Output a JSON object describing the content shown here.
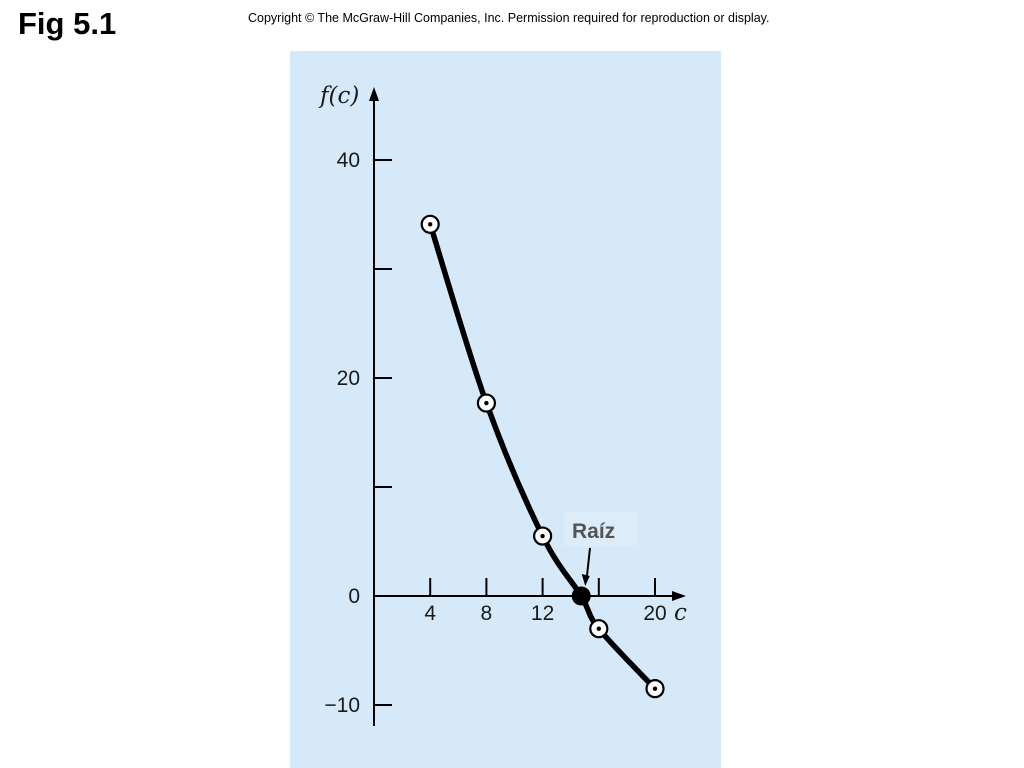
{
  "slide": {
    "title": "Fig 5.1",
    "copyright": "Copyright © The McGraw-Hill Companies, Inc. Permission required for reproduction or display."
  },
  "colors": {
    "panel_background": "#d6e9f8",
    "ink": "#000000",
    "callout_text": "#555555",
    "callout_background": "#dcedf9"
  },
  "chart_data": {
    "type": "line",
    "xlabel": "c",
    "ylabel": "f(c)",
    "xlim": [
      0,
      22
    ],
    "ylim": [
      -12,
      48
    ],
    "x_ticks": [
      4,
      8,
      12,
      16,
      20
    ],
    "x_tick_labels": [
      "4",
      "8",
      "12",
      "",
      "20"
    ],
    "y_ticks": [
      -10,
      0,
      10,
      20,
      30,
      40
    ],
    "y_tick_labels": [
      "−10",
      "0",
      "",
      "20",
      "",
      "40"
    ],
    "grid": false,
    "series": [
      {
        "points": [
          {
            "x": 4,
            "y": 34.1
          },
          {
            "x": 8,
            "y": 17.7
          },
          {
            "x": 12,
            "y": 5.5
          },
          {
            "x": 14.75,
            "y": 0
          },
          {
            "x": 16,
            "y": -3
          },
          {
            "x": 20,
            "y": -8.5
          }
        ]
      }
    ],
    "markers": [
      {
        "x": 4,
        "y": 34.1,
        "style": "open-dot"
      },
      {
        "x": 8,
        "y": 17.7,
        "style": "open-dot"
      },
      {
        "x": 12,
        "y": 5.5,
        "style": "open-dot"
      },
      {
        "x": 16,
        "y": -3,
        "style": "open-dot"
      },
      {
        "x": 20,
        "y": -8.5,
        "style": "open-dot"
      }
    ],
    "root": {
      "x": 14.75,
      "y": 0
    },
    "annotations": [
      {
        "text": "Raíz",
        "target_x": 14.75,
        "target_y": 0
      }
    ]
  }
}
